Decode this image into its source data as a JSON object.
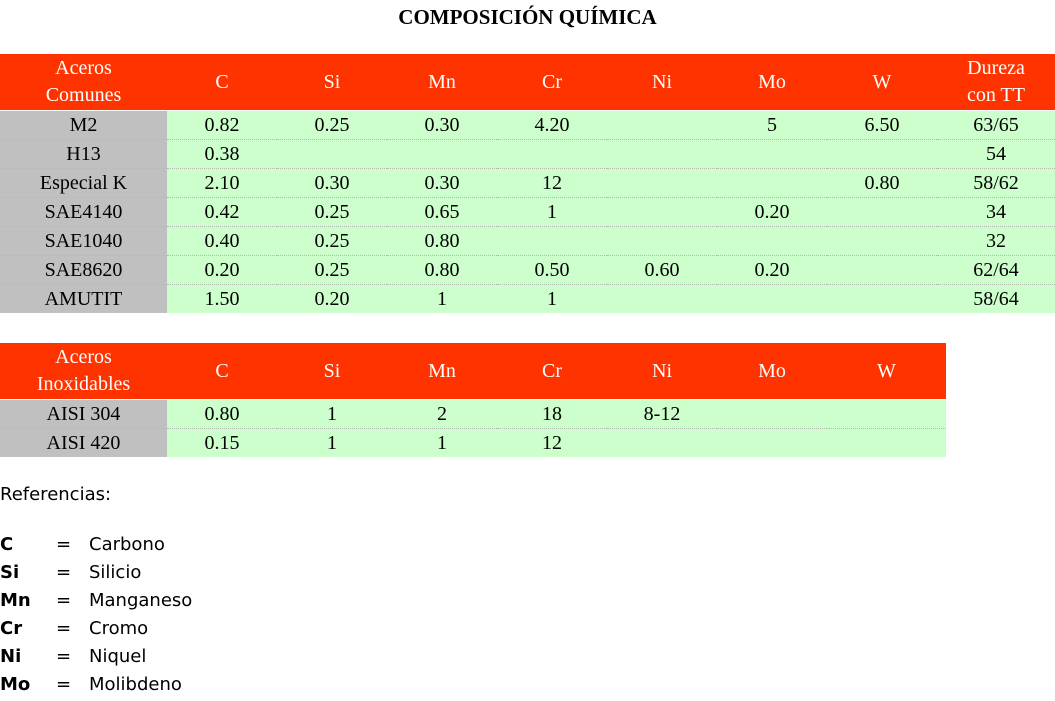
{
  "title": "COMPOSICIÓN QUÍMICA",
  "table_comunes": {
    "header": {
      "name_line1": "Aceros",
      "name_line2": "Comunes",
      "cols": [
        "C",
        "Si",
        "Mn",
        "Cr",
        "Ni",
        "Mo",
        "W"
      ],
      "hardness_line1": "Dureza",
      "hardness_line2": "con TT"
    },
    "rows": [
      [
        "M2",
        "0.82",
        "0.25",
        "0.30",
        "4.20",
        "",
        "5",
        "6.50",
        "63/65"
      ],
      [
        "H13",
        "0.38",
        "",
        "",
        "",
        "",
        "",
        "",
        "54"
      ],
      [
        "Especial K",
        "2.10",
        "0.30",
        "0.30",
        "12",
        "",
        "",
        "0.80",
        "58/62"
      ],
      [
        "SAE4140",
        "0.42",
        "0.25",
        "0.65",
        "1",
        "",
        "0.20",
        "",
        "34"
      ],
      [
        "SAE1040",
        "0.40",
        "0.25",
        "0.80",
        "",
        "",
        "",
        "",
        "32"
      ],
      [
        "SAE8620",
        "0.20",
        "0.25",
        "0.80",
        "0.50",
        "0.60",
        "0.20",
        "",
        "62/64"
      ],
      [
        "AMUTIT",
        "1.50",
        "0.20",
        "1",
        "1",
        "",
        "",
        "",
        "58/64"
      ]
    ]
  },
  "table_inoxidables": {
    "header": {
      "name_line1": "Aceros",
      "name_line2": "Inoxidables",
      "cols": [
        "C",
        "Si",
        "Mn",
        "Cr",
        "Ni",
        "Mo",
        "W"
      ]
    },
    "rows": [
      [
        "AISI 304",
        "0.80",
        "1",
        "2",
        "18",
        "8-12",
        "",
        ""
      ],
      [
        "AISI 420",
        "0.15",
        "1",
        "1",
        "12",
        "",
        "",
        ""
      ]
    ]
  },
  "references": {
    "title": "Referencias:",
    "items": [
      {
        "symbol": "C",
        "eq": "=",
        "name": "Carbono"
      },
      {
        "symbol": "Si",
        "eq": "=",
        "name": "Silicio"
      },
      {
        "symbol": "Mn",
        "eq": "=",
        "name": "Manganeso"
      },
      {
        "symbol": "Cr",
        "eq": "=",
        "name": "Cromo"
      },
      {
        "symbol": "Ni",
        "eq": "=",
        "name": "Niquel"
      },
      {
        "symbol": "Mo",
        "eq": "=",
        "name": "Molibdeno"
      }
    ]
  }
}
